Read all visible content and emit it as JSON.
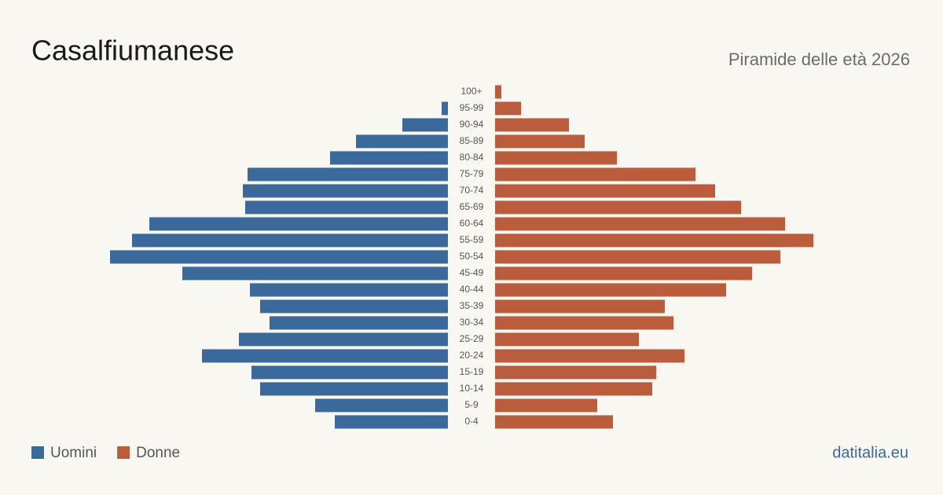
{
  "chart_data": {
    "type": "pyramid",
    "title": "Casalfiumanese",
    "subtitle": "Piramide delle età 2026",
    "source": "datitalia.eu",
    "categories": [
      "100+",
      "95-99",
      "90-94",
      "85-89",
      "80-84",
      "75-79",
      "70-74",
      "65-69",
      "60-64",
      "55-59",
      "50-54",
      "45-49",
      "40-44",
      "35-39",
      "30-34",
      "25-29",
      "20-24",
      "15-19",
      "10-14",
      "5-9",
      "0-4"
    ],
    "series": [
      {
        "name": "Uomini",
        "color": "#3a6a9c",
        "values": [
          0,
          8,
          58,
          117,
          150,
          255,
          261,
          258,
          380,
          402,
          430,
          338,
          252,
          239,
          227,
          266,
          313,
          250,
          239,
          169,
          144
        ]
      },
      {
        "name": "Donne",
        "color": "#b95d3c",
        "values": [
          8,
          33,
          94,
          114,
          155,
          255,
          280,
          313,
          369,
          405,
          363,
          327,
          294,
          216,
          227,
          183,
          241,
          205,
          200,
          130,
          150
        ]
      }
    ]
  }
}
